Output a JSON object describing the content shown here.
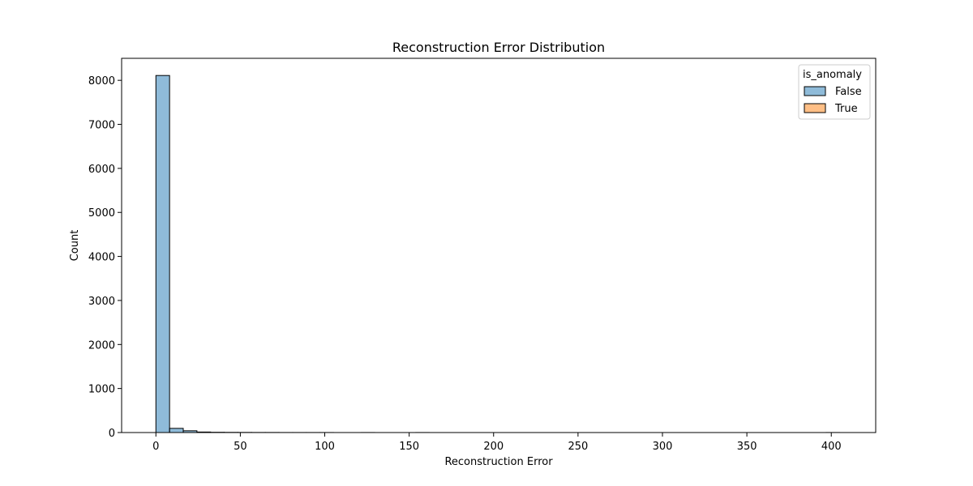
{
  "chart_data": {
    "type": "bar",
    "title": "Reconstruction Error Distribution",
    "xlabel": "Reconstruction Error",
    "ylabel": "Count",
    "xlim": [
      -20.3,
      426.3
    ],
    "ylim": [
      0,
      8500
    ],
    "xticks": [
      0,
      50,
      100,
      150,
      200,
      250,
      300,
      350,
      400
    ],
    "yticks": [
      0,
      1000,
      2000,
      3000,
      4000,
      5000,
      6000,
      7000,
      8000
    ],
    "grid": false,
    "bin_edges": [
      0,
      8.1,
      16.2,
      24.3,
      32.4,
      40.5,
      48.6,
      56.7,
      64.8,
      72.9,
      81,
      89.1,
      97.2,
      105.3,
      113.4,
      121.5,
      129.6,
      137.7,
      145.8,
      153.9,
      162,
      170.1,
      178.2,
      186.3,
      194.4,
      202.5,
      210.6,
      218.7,
      226.8,
      234.9,
      243,
      251.1,
      259.2,
      267.3,
      275.4,
      283.5,
      291.6,
      299.7,
      307.8,
      315.9,
      324,
      332.1,
      340.2,
      348.3,
      356.4,
      364.5,
      372.6,
      380.7,
      388.8,
      396.9,
      405
    ],
    "series": [
      {
        "name": "False",
        "color": "#1f77b4",
        "values": [
          8110,
          95,
          40,
          12,
          6,
          4,
          3,
          2,
          2,
          1,
          1,
          1,
          1,
          0,
          0,
          1,
          0,
          0,
          0,
          1,
          0,
          0,
          0,
          0,
          0,
          0,
          0,
          0,
          0,
          0,
          0,
          0,
          0,
          0,
          0,
          0,
          0,
          0,
          0,
          0,
          0,
          0,
          0,
          0,
          0,
          0,
          0,
          0,
          0,
          0
        ]
      },
      {
        "name": "True",
        "color": "#ff7f0e",
        "values": [
          0,
          0,
          0,
          0,
          0,
          0,
          0,
          0,
          0,
          0,
          0,
          0,
          0,
          0,
          0,
          0,
          0,
          0,
          0,
          0,
          0,
          0,
          0,
          0,
          0,
          0,
          0,
          0,
          0,
          0,
          0,
          0,
          0,
          0,
          0,
          0,
          0,
          0,
          0,
          0,
          0,
          0,
          0,
          0,
          0,
          0,
          0,
          0,
          0,
          1
        ]
      }
    ],
    "legend": {
      "title": "is_anomaly",
      "placement": "top-right",
      "entries": [
        "False",
        "True"
      ]
    }
  }
}
